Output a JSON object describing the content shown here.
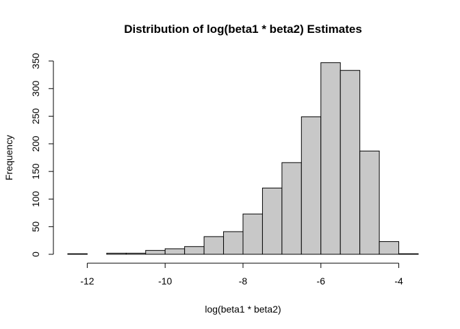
{
  "chart_data": {
    "type": "bar",
    "title": "Distribution of log(beta1 * beta2) Estimates",
    "xlabel": "log(beta1 * beta2)",
    "ylabel": "Frequency",
    "bin_edges": [
      -12.5,
      -12,
      -11.5,
      -11,
      -10.5,
      -10,
      -9.5,
      -9,
      -8.5,
      -8,
      -7.5,
      -7,
      -6.5,
      -6,
      -5.5,
      -5,
      -4.5,
      -4,
      -3.5
    ],
    "values": [
      1,
      0,
      2,
      2,
      7,
      10,
      14,
      32,
      41,
      73,
      120,
      166,
      249,
      347,
      333,
      187,
      23,
      1
    ],
    "xlim": [
      -12.5,
      -3.5
    ],
    "ylim": [
      0,
      350
    ],
    "x_ticks": [
      -12,
      -10,
      -8,
      -6,
      -4
    ],
    "y_ticks": [
      0,
      50,
      100,
      150,
      200,
      250,
      300,
      350
    ],
    "grid": false,
    "bar_color": "#c8c8c8"
  }
}
